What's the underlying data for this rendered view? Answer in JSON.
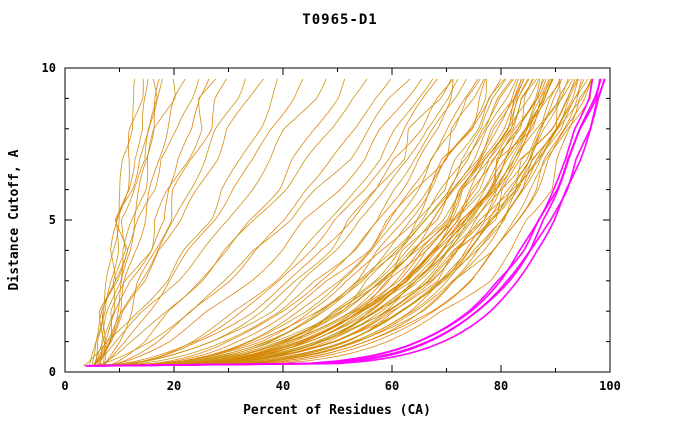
{
  "chart_data": {
    "type": "line",
    "title": "T0965-D1",
    "xlabel": "Percent of Residues (CA)",
    "ylabel": "Distance Cutoff, A",
    "xlim": [
      0,
      100
    ],
    "ylim": [
      0,
      10
    ],
    "x_ticks": [
      0,
      20,
      40,
      60,
      80,
      100
    ],
    "x_minor_step": 10,
    "y_ticks": [
      0,
      5,
      10
    ],
    "y_minor_step": 1,
    "grid": false,
    "legend": "none",
    "y_start": 0.2,
    "y_end": 9.7,
    "series_model": "x(y) = x0 + (xmax - x0) * ((y - y_start)/(y_end - y_start))^b",
    "colors": {
      "orange_a": "#e07f00",
      "orange_b": "#c8900a",
      "magenta": "#ff00ff",
      "axis": "#000000",
      "background": "#ffffff"
    },
    "orange_curves": [
      [
        5,
        13,
        0.9
      ],
      [
        6,
        14,
        1.05
      ],
      [
        5,
        15,
        0.85
      ],
      [
        6,
        16,
        1.1
      ],
      [
        5,
        17,
        0.95
      ],
      [
        6,
        18,
        0.8
      ],
      [
        5,
        20,
        1.0
      ],
      [
        6,
        22,
        0.9
      ],
      [
        5,
        24,
        1.1
      ],
      [
        6,
        26,
        0.85
      ],
      [
        5,
        28,
        0.95
      ],
      [
        7,
        30,
        1.0
      ],
      [
        5,
        33,
        0.9
      ],
      [
        6,
        36,
        1.05
      ],
      [
        5,
        40,
        0.8
      ],
      [
        7,
        44,
        0.9
      ],
      [
        5,
        48,
        0.85
      ],
      [
        7,
        52,
        0.75
      ],
      [
        6,
        56,
        0.8
      ],
      [
        7,
        60,
        0.7
      ],
      [
        6,
        64,
        0.75
      ],
      [
        7,
        66,
        0.65
      ],
      [
        7,
        68,
        0.55
      ],
      [
        6,
        71,
        0.5
      ],
      [
        7,
        73,
        0.48
      ],
      [
        6,
        69,
        0.52
      ],
      [
        5,
        70,
        0.45
      ],
      [
        6,
        72,
        0.4
      ],
      [
        5,
        74,
        0.42
      ],
      [
        6,
        75,
        0.38
      ],
      [
        5,
        76,
        0.35
      ],
      [
        6,
        77,
        0.4
      ],
      [
        5,
        78,
        0.33
      ],
      [
        6,
        79,
        0.36
      ],
      [
        5,
        80,
        0.3
      ],
      [
        6,
        80,
        0.38
      ],
      [
        5,
        81,
        0.34
      ],
      [
        6,
        82,
        0.3
      ],
      [
        5,
        82,
        0.36
      ],
      [
        6,
        83,
        0.28
      ],
      [
        5,
        83,
        0.33
      ],
      [
        6,
        84,
        0.3
      ],
      [
        5,
        84,
        0.35
      ],
      [
        6,
        85,
        0.27
      ],
      [
        5,
        85,
        0.32
      ],
      [
        6,
        86,
        0.29
      ],
      [
        5,
        86,
        0.34
      ],
      [
        6,
        87,
        0.26
      ],
      [
        5,
        87,
        0.3
      ],
      [
        6,
        88,
        0.28
      ],
      [
        5,
        88,
        0.32
      ],
      [
        6,
        89,
        0.25
      ],
      [
        5,
        89,
        0.29
      ],
      [
        6,
        90,
        0.27
      ],
      [
        5,
        90,
        0.31
      ],
      [
        6,
        91,
        0.24
      ],
      [
        5,
        91,
        0.28
      ],
      [
        6,
        92,
        0.26
      ],
      [
        5,
        92,
        0.3
      ],
      [
        6,
        93,
        0.23
      ],
      [
        5,
        93,
        0.27
      ],
      [
        6,
        94,
        0.25
      ],
      [
        5,
        94,
        0.29
      ],
      [
        6,
        95,
        0.22
      ],
      [
        5,
        95,
        0.26
      ],
      [
        6,
        96,
        0.24
      ],
      [
        5,
        96,
        0.28
      ],
      [
        6,
        97,
        0.21
      ],
      [
        5,
        97,
        0.25
      ],
      [
        6,
        86,
        0.31
      ],
      [
        5,
        88,
        0.27
      ],
      [
        6,
        90,
        0.33
      ],
      [
        5,
        92,
        0.24
      ],
      [
        6,
        84,
        0.33
      ],
      [
        5,
        87,
        0.35
      ],
      [
        6,
        89,
        0.3
      ],
      [
        5,
        91,
        0.33
      ],
      [
        6,
        93,
        0.29
      ],
      [
        5,
        95,
        0.31
      ]
    ],
    "magenta_curves": [
      [
        4,
        97,
        0.17
      ],
      [
        4,
        98,
        0.16
      ],
      [
        5,
        98,
        0.18
      ],
      [
        4,
        99,
        0.15
      ],
      [
        5,
        99,
        0.17
      ]
    ]
  }
}
